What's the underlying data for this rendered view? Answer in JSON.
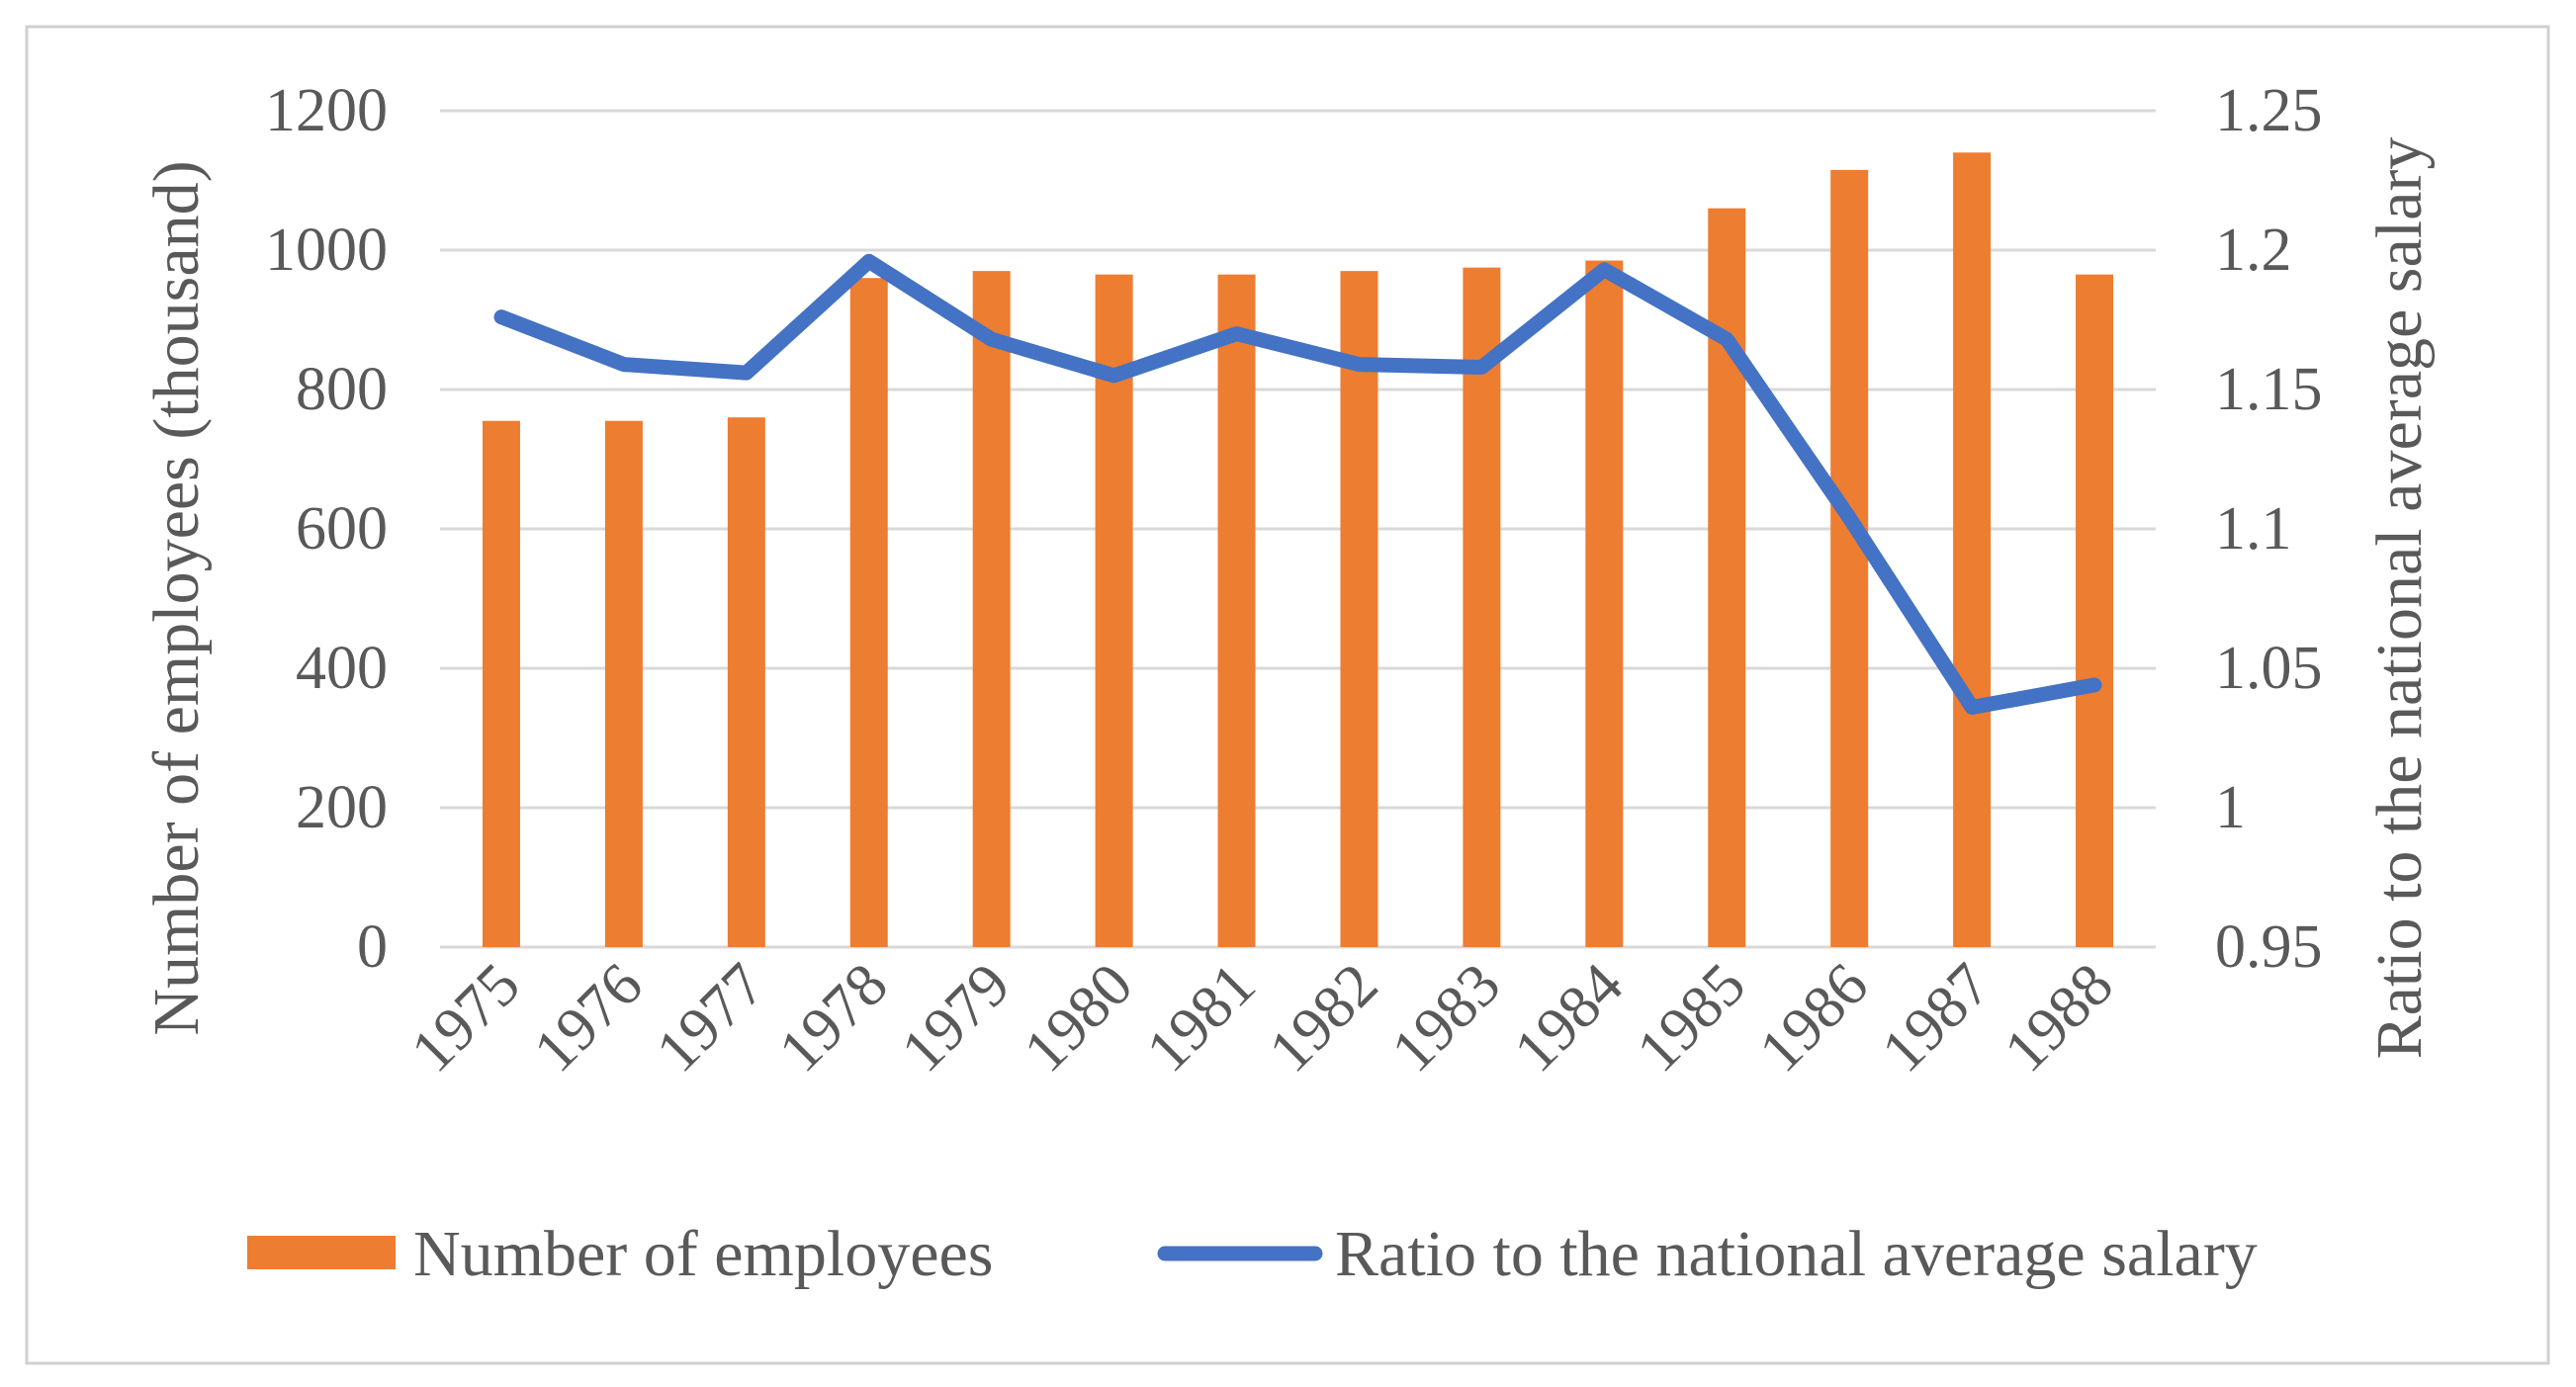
{
  "chart_data": {
    "type": "bar+line",
    "categories": [
      "1975",
      "1976",
      "1977",
      "1978",
      "1979",
      "1980",
      "1981",
      "1982",
      "1983",
      "1984",
      "1985",
      "1986",
      "1987",
      "1988"
    ],
    "series": [
      {
        "name": "Number of employees",
        "type": "bar",
        "axis": "left",
        "color": "#ED7D31",
        "values": [
          755,
          755,
          760,
          960,
          970,
          965,
          965,
          970,
          975,
          985,
          1060,
          1115,
          1140,
          965
        ]
      },
      {
        "name": "Ratio to the national average salary",
        "type": "line",
        "axis": "right",
        "color": "#4472C4",
        "values": [
          1.176,
          1.159,
          1.156,
          1.196,
          1.168,
          1.155,
          1.17,
          1.159,
          1.158,
          1.193,
          1.168,
          1.104,
          1.036,
          1.044
        ]
      }
    ],
    "ylabel": "Number of employees (thousand)",
    "y2label": "Ratio to the national  average salary",
    "ylim": [
      0,
      1200
    ],
    "y2lim": [
      0.95,
      1.25
    ],
    "yticks": [
      "0",
      "200",
      "400",
      "600",
      "800",
      "1000",
      "1200"
    ],
    "y2ticks": [
      "0.95",
      "1",
      "1.05",
      "1.1",
      "1.15",
      "1.2",
      "1.25"
    ],
    "grid": true,
    "legend": "bottom"
  }
}
